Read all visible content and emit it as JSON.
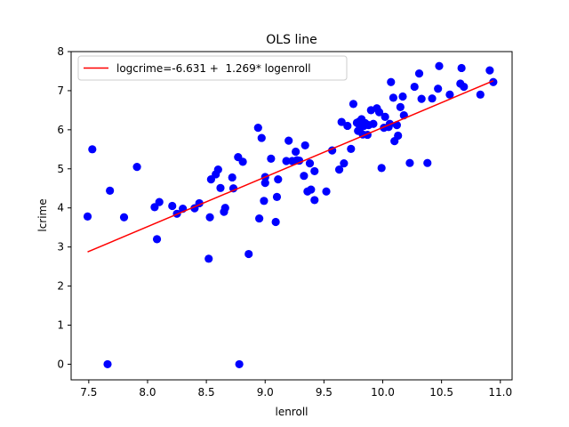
{
  "chart_data": {
    "type": "scatter",
    "title": "OLS line",
    "xlabel": "lenroll",
    "ylabel": "lcrime",
    "xlim": [
      7.35,
      11.1
    ],
    "ylim": [
      -0.4,
      8.0
    ],
    "xticks": [
      7.5,
      8.0,
      8.5,
      9.0,
      9.5,
      10.0,
      10.5,
      11.0
    ],
    "xtick_labels": [
      "7.5",
      "8.0",
      "8.5",
      "9.0",
      "9.5",
      "10.0",
      "10.5",
      "11.0"
    ],
    "yticks": [
      0,
      1,
      2,
      3,
      4,
      5,
      6,
      7,
      8
    ],
    "ytick_labels": [
      "0",
      "1",
      "2",
      "3",
      "4",
      "5",
      "6",
      "7",
      "8"
    ],
    "grid": false,
    "legend_position": "top-left",
    "series": [
      {
        "kind": "scatter",
        "color": "#0000ff",
        "x": [
          7.49,
          7.53,
          7.66,
          7.68,
          7.8,
          7.91,
          8.06,
          8.08,
          8.1,
          8.21,
          8.25,
          8.3,
          8.4,
          8.44,
          8.52,
          8.53,
          8.54,
          8.58,
          8.6,
          8.62,
          8.65,
          8.66,
          8.72,
          8.73,
          8.77,
          8.78,
          8.81,
          8.86,
          8.94,
          8.95,
          8.97,
          8.99,
          9.0,
          9.0,
          9.05,
          9.09,
          9.1,
          9.11,
          9.18,
          9.2,
          9.23,
          9.26,
          9.27,
          9.29,
          9.33,
          9.34,
          9.36,
          9.38,
          9.39,
          9.42,
          9.42,
          9.52,
          9.57,
          9.63,
          9.65,
          9.67,
          9.7,
          9.73,
          9.75,
          9.78,
          9.79,
          9.8,
          9.8,
          9.81,
          9.82,
          9.83,
          9.84,
          9.85,
          9.87,
          9.88,
          9.9,
          9.92,
          9.95,
          9.97,
          9.99,
          10.01,
          10.02,
          10.05,
          10.06,
          10.07,
          10.09,
          10.1,
          10.12,
          10.13,
          10.15,
          10.17,
          10.18,
          10.23,
          10.27,
          10.31,
          10.33,
          10.38,
          10.42,
          10.47,
          10.48,
          10.57,
          10.66,
          10.67,
          10.69,
          10.83,
          10.91,
          10.94
        ],
        "y": [
          3.78,
          5.5,
          0.0,
          4.44,
          3.76,
          5.05,
          4.02,
          3.2,
          4.15,
          4.05,
          3.85,
          3.98,
          3.99,
          4.12,
          2.7,
          3.76,
          4.73,
          4.86,
          4.98,
          4.51,
          3.9,
          4.0,
          4.78,
          4.5,
          5.3,
          0.0,
          5.18,
          2.82,
          6.05,
          3.73,
          5.79,
          4.18,
          4.64,
          4.79,
          5.26,
          3.64,
          4.28,
          4.73,
          5.2,
          5.72,
          5.2,
          5.44,
          5.22,
          5.21,
          4.82,
          5.6,
          4.42,
          5.14,
          4.47,
          4.2,
          4.94,
          4.42,
          5.47,
          4.98,
          6.2,
          5.14,
          6.1,
          5.51,
          6.66,
          6.18,
          5.97,
          6.13,
          6.21,
          6.05,
          6.27,
          5.88,
          6.1,
          6.17,
          5.87,
          6.12,
          6.5,
          6.15,
          6.55,
          6.45,
          5.02,
          6.05,
          6.33,
          6.07,
          6.15,
          7.22,
          6.82,
          5.71,
          6.12,
          5.85,
          6.58,
          6.85,
          6.37,
          5.15,
          7.1,
          7.44,
          6.79,
          5.15,
          6.8,
          7.05,
          7.63,
          6.9,
          7.18,
          7.58,
          7.1,
          6.9,
          7.52,
          7.22
        ]
      },
      {
        "kind": "line",
        "name": "logcrime=-6.631 +  1.269* logenroll",
        "color": "#ff0000",
        "intercept": -6.631,
        "slope": 1.269,
        "x": [
          7.49,
          10.94
        ]
      }
    ]
  }
}
